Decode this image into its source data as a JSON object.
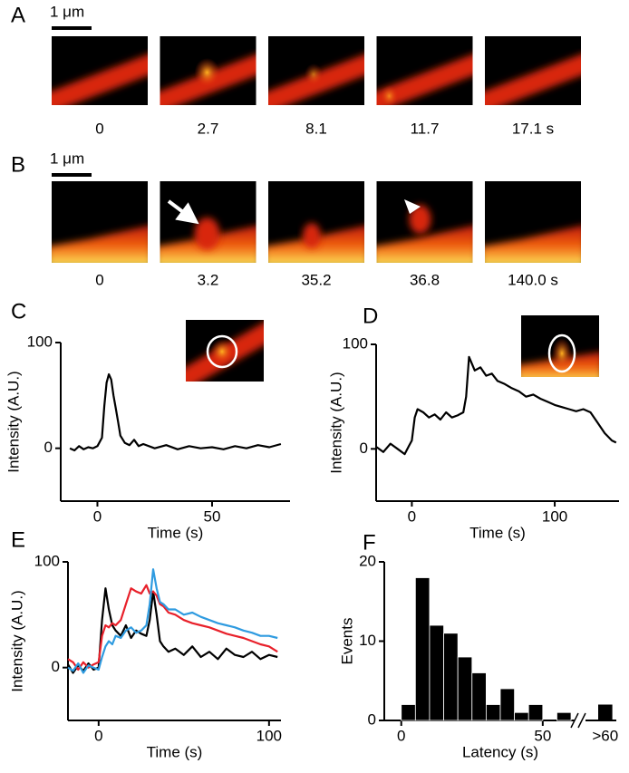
{
  "image_rows": [
    {
      "panel": "A",
      "scale_bar": "1 μm",
      "times": [
        "0",
        "2.7",
        "8.1",
        "11.7",
        "17.1 s"
      ]
    },
    {
      "panel": "B",
      "scale_bar": "1 μm",
      "times": [
        "0",
        "3.2",
        "35.2",
        "36.8",
        "140.0 s"
      ]
    }
  ],
  "chart_data": [
    {
      "type": "line",
      "panel": "C",
      "x_label": "Time (s)",
      "y_label": "Intensity (A.U.)",
      "color": "#000000",
      "x": [
        -12,
        -10,
        -8,
        -6,
        -4,
        -2,
        0,
        2,
        3,
        4,
        5,
        6,
        7,
        8,
        9,
        10,
        12,
        14,
        16,
        18,
        20,
        25,
        30,
        35,
        40,
        45,
        50,
        55,
        60,
        65,
        70,
        75,
        80
      ],
      "values": [
        0,
        -2,
        2,
        -1,
        1,
        0,
        2,
        10,
        40,
        62,
        70,
        65,
        50,
        38,
        25,
        12,
        5,
        3,
        8,
        2,
        4,
        0,
        3,
        -1,
        2,
        0,
        1,
        -1,
        2,
        0,
        3,
        1,
        4
      ],
      "xlim": [
        -16,
        84
      ],
      "ylim": [
        -50,
        100
      ],
      "xticks": [
        0,
        50
      ],
      "yticks": [
        0,
        100
      ]
    },
    {
      "type": "line",
      "panel": "D",
      "x_label": "Time (s)",
      "y_label": "Intensity (A.U.)",
      "color": "#000000",
      "x": [
        -25,
        -20,
        -15,
        -10,
        -5,
        -2,
        0,
        2,
        4,
        8,
        12,
        16,
        20,
        24,
        28,
        32,
        36,
        38,
        40,
        44,
        48,
        52,
        56,
        60,
        65,
        70,
        75,
        80,
        85,
        90,
        95,
        100,
        105,
        110,
        115,
        120,
        125,
        130,
        135,
        140,
        143
      ],
      "values": [
        2,
        -3,
        5,
        0,
        -5,
        3,
        8,
        30,
        38,
        35,
        30,
        33,
        28,
        35,
        30,
        32,
        35,
        50,
        88,
        75,
        78,
        70,
        72,
        65,
        62,
        58,
        55,
        50,
        52,
        48,
        45,
        42,
        40,
        38,
        36,
        38,
        35,
        25,
        15,
        8,
        6
      ],
      "xlim": [
        -25,
        145
      ],
      "ylim": [
        -50,
        100
      ],
      "xticks": [
        0,
        100
      ],
      "yticks": [
        0,
        100
      ]
    },
    {
      "type": "line",
      "panel": "E",
      "x_label": "Time (s)",
      "y_label": "Intensity (A.U.)",
      "x": [
        -18,
        -15,
        -12,
        -9,
        -6,
        -3,
        0,
        2,
        4,
        6,
        8,
        10,
        13,
        16,
        19,
        22,
        25,
        28,
        30,
        32,
        34,
        36,
        38,
        41,
        45,
        50,
        55,
        60,
        65,
        70,
        75,
        80,
        85,
        90,
        95,
        100,
        105
      ],
      "series": [
        {
          "color": "#000000",
          "values": [
            3,
            -5,
            2,
            -3,
            4,
            -2,
            0,
            45,
            75,
            55,
            40,
            35,
            30,
            40,
            28,
            35,
            32,
            30,
            45,
            72,
            50,
            25,
            20,
            15,
            18,
            12,
            20,
            10,
            15,
            8,
            18,
            12,
            10,
            15,
            8,
            12,
            10
          ]
        },
        {
          "color": "#e8202a",
          "values": [
            8,
            5,
            -2,
            5,
            0,
            3,
            5,
            30,
            40,
            38,
            42,
            40,
            45,
            60,
            75,
            72,
            70,
            78,
            70,
            72,
            68,
            60,
            58,
            52,
            50,
            45,
            42,
            40,
            38,
            35,
            32,
            30,
            28,
            25,
            22,
            20,
            15
          ]
        },
        {
          "color": "#2f9be0",
          "values": [
            0,
            -3,
            4,
            -5,
            2,
            0,
            -2,
            10,
            20,
            25,
            22,
            30,
            28,
            35,
            38,
            33,
            35,
            40,
            60,
            93,
            75,
            62,
            60,
            55,
            55,
            50,
            52,
            48,
            45,
            42,
            40,
            38,
            35,
            33,
            30,
            30,
            28
          ]
        }
      ],
      "xlim": [
        -18,
        107
      ],
      "ylim": [
        -50,
        100
      ],
      "xticks": [
        0,
        100
      ],
      "yticks": [
        0,
        100
      ]
    },
    {
      "type": "histogram",
      "panel": "F",
      "x_label": "Latency (s)",
      "y_label": "Events",
      "color": "#000000",
      "bins": [
        0,
        5,
        10,
        15,
        20,
        25,
        30,
        35,
        40,
        45,
        50,
        55,
        60
      ],
      "values": [
        2,
        18,
        12,
        11,
        8,
        6,
        2,
        4,
        1,
        2,
        0,
        1
      ],
      "overflow": {
        "label": ">60",
        "value": 2
      },
      "xlim": [
        -6,
        76
      ],
      "ylim": [
        0,
        20
      ],
      "xticks": [
        0,
        50
      ],
      "yticks": [
        0,
        10,
        20
      ]
    }
  ]
}
